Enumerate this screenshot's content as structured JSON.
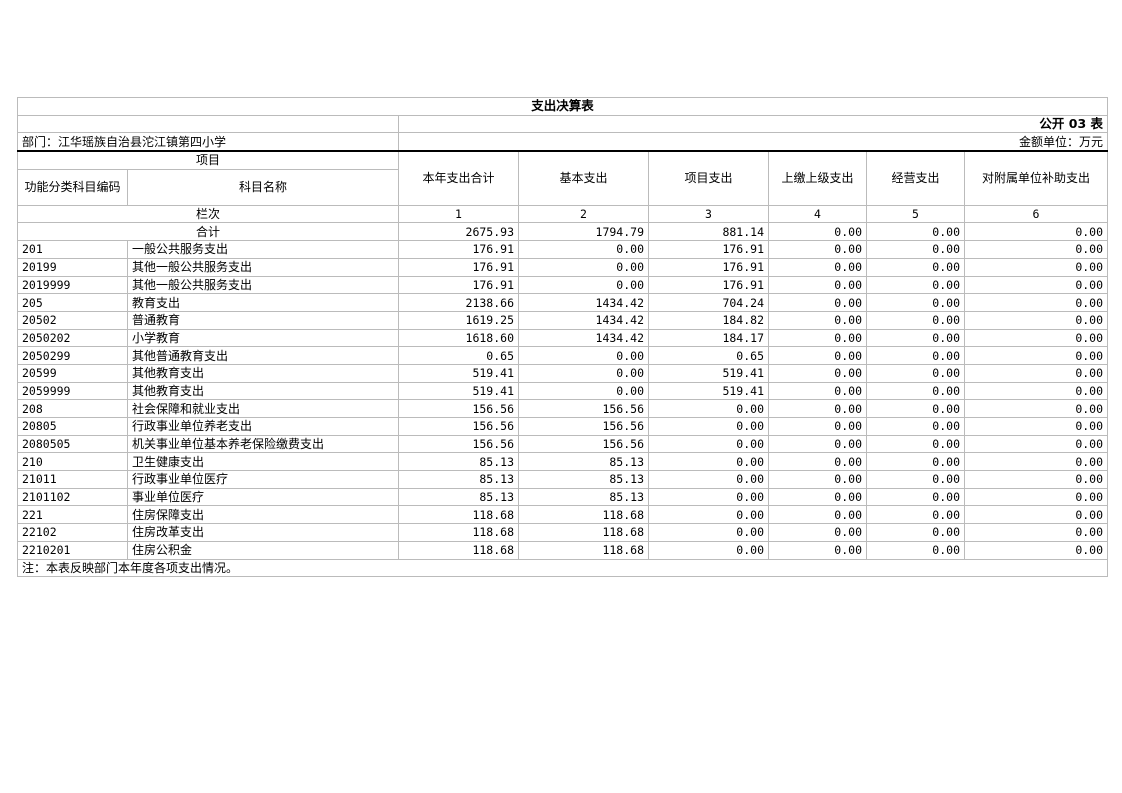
{
  "title": "支出决算表",
  "table_no": "公开 03 表",
  "department": "部门：江华瑶族自治县沱江镇第四小学",
  "unit": "金额单位：万元",
  "headers": {
    "project": "项目",
    "code": "功能分类科目编码",
    "name": "科目名称",
    "cols": [
      "本年支出合计",
      "基本支出",
      "项目支出",
      "上缴上级支出",
      "经营支出",
      "对附属单位补助支出"
    ]
  },
  "lanci": {
    "label": "栏次",
    "nums": [
      "1",
      "2",
      "3",
      "4",
      "5",
      "6"
    ]
  },
  "total": {
    "label": "合计",
    "values": [
      "2675.93",
      "1794.79",
      "881.14",
      "0.00",
      "0.00",
      "0.00"
    ]
  },
  "rows": [
    {
      "code": "201",
      "name": "一般公共服务支出",
      "values": [
        "176.91",
        "0.00",
        "176.91",
        "0.00",
        "0.00",
        "0.00"
      ]
    },
    {
      "code": "20199",
      "name": "其他一般公共服务支出",
      "values": [
        "176.91",
        "0.00",
        "176.91",
        "0.00",
        "0.00",
        "0.00"
      ]
    },
    {
      "code": "2019999",
      "name": "其他一般公共服务支出",
      "values": [
        "176.91",
        "0.00",
        "176.91",
        "0.00",
        "0.00",
        "0.00"
      ]
    },
    {
      "code": "205",
      "name": "教育支出",
      "values": [
        "2138.66",
        "1434.42",
        "704.24",
        "0.00",
        "0.00",
        "0.00"
      ]
    },
    {
      "code": "20502",
      "name": "普通教育",
      "values": [
        "1619.25",
        "1434.42",
        "184.82",
        "0.00",
        "0.00",
        "0.00"
      ]
    },
    {
      "code": "2050202",
      "name": "小学教育",
      "values": [
        "1618.60",
        "1434.42",
        "184.17",
        "0.00",
        "0.00",
        "0.00"
      ]
    },
    {
      "code": "2050299",
      "name": "其他普通教育支出",
      "values": [
        "0.65",
        "0.00",
        "0.65",
        "0.00",
        "0.00",
        "0.00"
      ]
    },
    {
      "code": "20599",
      "name": "其他教育支出",
      "values": [
        "519.41",
        "0.00",
        "519.41",
        "0.00",
        "0.00",
        "0.00"
      ]
    },
    {
      "code": "2059999",
      "name": "其他教育支出",
      "values": [
        "519.41",
        "0.00",
        "519.41",
        "0.00",
        "0.00",
        "0.00"
      ]
    },
    {
      "code": "208",
      "name": "社会保障和就业支出",
      "values": [
        "156.56",
        "156.56",
        "0.00",
        "0.00",
        "0.00",
        "0.00"
      ]
    },
    {
      "code": "20805",
      "name": "行政事业单位养老支出",
      "values": [
        "156.56",
        "156.56",
        "0.00",
        "0.00",
        "0.00",
        "0.00"
      ]
    },
    {
      "code": "2080505",
      "name": "机关事业单位基本养老保险缴费支出",
      "values": [
        "156.56",
        "156.56",
        "0.00",
        "0.00",
        "0.00",
        "0.00"
      ]
    },
    {
      "code": "210",
      "name": "卫生健康支出",
      "values": [
        "85.13",
        "85.13",
        "0.00",
        "0.00",
        "0.00",
        "0.00"
      ]
    },
    {
      "code": "21011",
      "name": "行政事业单位医疗",
      "values": [
        "85.13",
        "85.13",
        "0.00",
        "0.00",
        "0.00",
        "0.00"
      ]
    },
    {
      "code": "2101102",
      "name": "事业单位医疗",
      "values": [
        "85.13",
        "85.13",
        "0.00",
        "0.00",
        "0.00",
        "0.00"
      ]
    },
    {
      "code": "221",
      "name": "住房保障支出",
      "values": [
        "118.68",
        "118.68",
        "0.00",
        "0.00",
        "0.00",
        "0.00"
      ]
    },
    {
      "code": "22102",
      "name": "住房改革支出",
      "values": [
        "118.68",
        "118.68",
        "0.00",
        "0.00",
        "0.00",
        "0.00"
      ]
    },
    {
      "code": "2210201",
      "name": "住房公积金",
      "values": [
        "118.68",
        "118.68",
        "0.00",
        "0.00",
        "0.00",
        "0.00"
      ]
    }
  ],
  "note": "注：本表反映部门本年度各项支出情况。"
}
